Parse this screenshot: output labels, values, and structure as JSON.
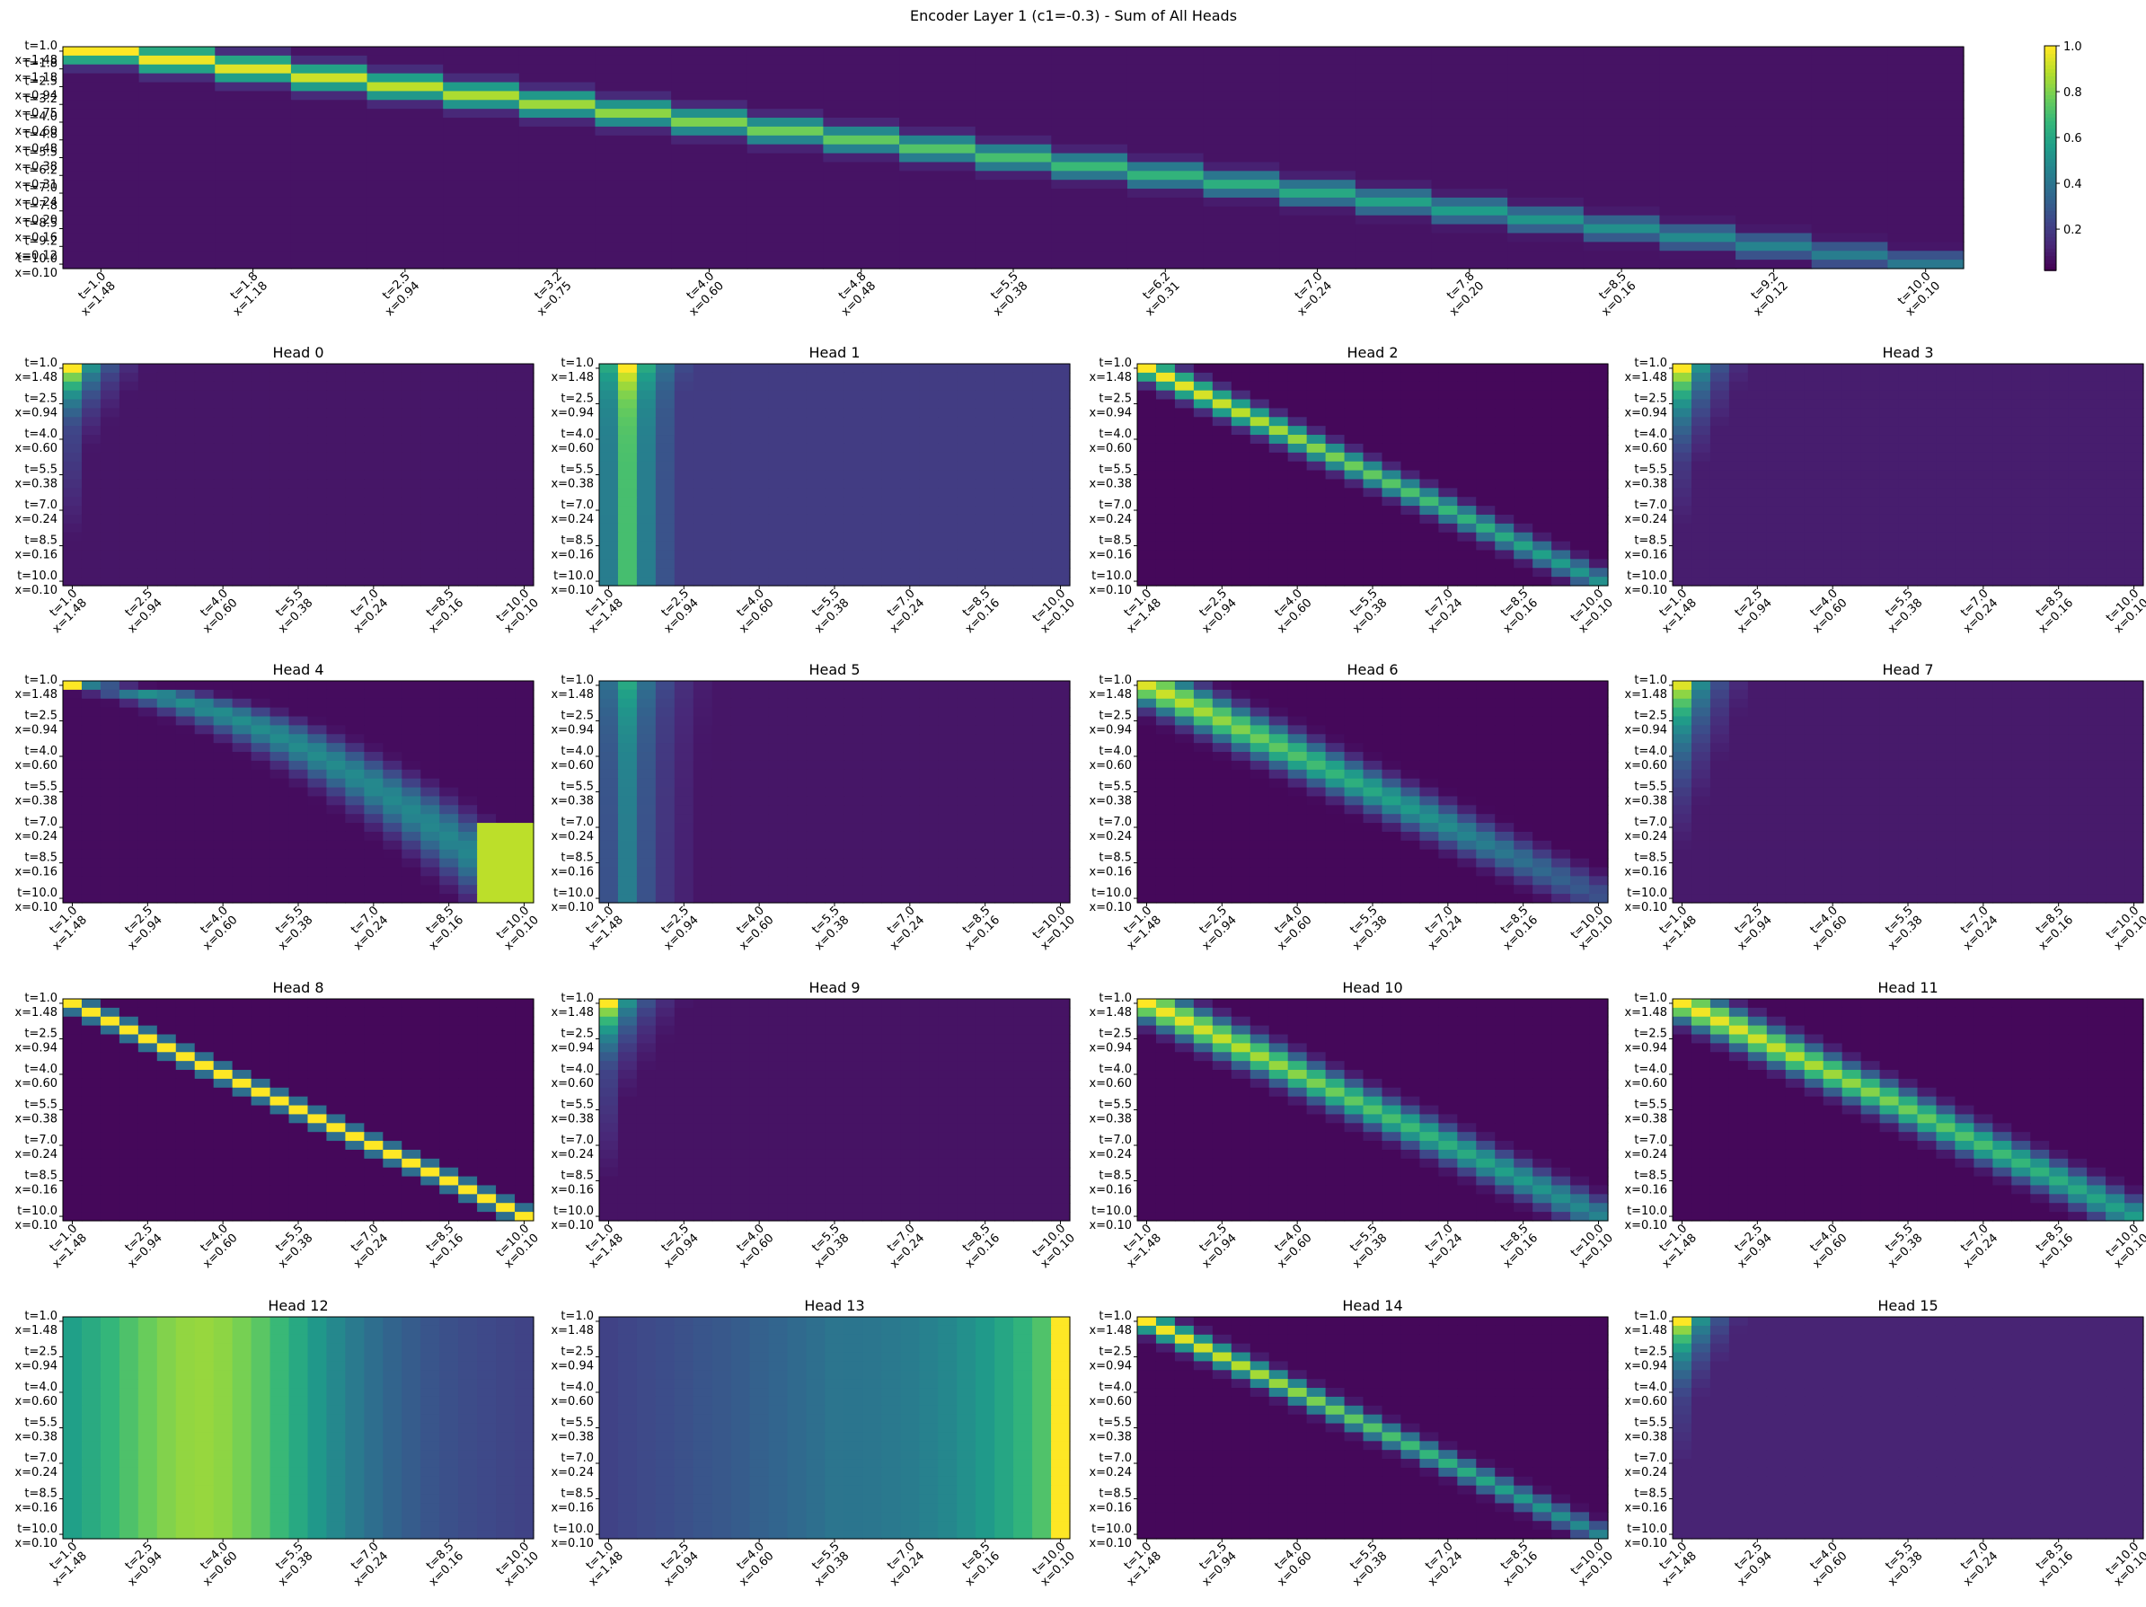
{
  "figure": {
    "title": "Encoder Layer 1 (c1=-0.3) - Sum of All Heads",
    "colormap": "viridis"
  },
  "colorbar": {
    "ticks": [
      0.2,
      0.4,
      0.6,
      0.8,
      1.0
    ],
    "tick_labels": [
      "0.2",
      "0.4",
      "0.6",
      "0.8",
      "1.0"
    ],
    "range": [
      0.02,
      1.0
    ]
  },
  "chart_data": {
    "type": "heatmap",
    "grid_size": 25,
    "tokens": {
      "t": [
        "1.0",
        "1.4",
        "1.8",
        "2.1",
        "2.5",
        "2.9",
        "3.2",
        "3.6",
        "4.0",
        "4.4",
        "4.8",
        "5.1",
        "5.5",
        "5.9",
        "6.2",
        "6.6",
        "7.0",
        "7.4",
        "7.8",
        "8.1",
        "8.5",
        "8.9",
        "9.2",
        "9.6",
        "10.0"
      ],
      "x": [
        "1.48",
        "1.32",
        "1.18",
        "1.05",
        "0.94",
        "0.84",
        "0.75",
        "0.67",
        "0.60",
        "0.54",
        "0.48",
        "0.43",
        "0.38",
        "0.34",
        "0.31",
        "0.27",
        "0.24",
        "0.22",
        "0.20",
        "0.18",
        "0.16",
        "0.14",
        "0.12",
        "0.11",
        "0.10"
      ]
    },
    "main_tick_indices": [
      0,
      2,
      4,
      6,
      8,
      10,
      12,
      14,
      16,
      18,
      20,
      22,
      24
    ],
    "head_tick_indices": [
      0,
      4,
      8,
      12,
      16,
      20,
      24
    ],
    "main": {
      "name": "Sum of All Heads",
      "pattern": "diagonal",
      "peak_first": 1.0,
      "peak_last": 0.4,
      "width": 1.0,
      "floor": 0.05
    },
    "heads": [
      {
        "name": "Head 0",
        "pattern": "first_column",
        "peak": 1.0,
        "decay": 0.18,
        "floor": 0.06
      },
      {
        "name": "Head 1",
        "pattern": "second_column",
        "peak": 1.0,
        "decay": 0.12,
        "floor": 0.18
      },
      {
        "name": "Head 2",
        "pattern": "diagonal",
        "peak_first": 1.0,
        "peak_last": 0.5,
        "width": 1.0,
        "floor": 0.02
      },
      {
        "name": "Head 3",
        "pattern": "first_column",
        "peak": 1.0,
        "decay": 0.25,
        "floor": 0.08
      },
      {
        "name": "Head 4",
        "pattern": "curve",
        "peak_first": 1.0,
        "peak_last": 0.9,
        "width": 1.8,
        "floor": 0.03
      },
      {
        "name": "Head 5",
        "pattern": "second_column",
        "peak": 0.6,
        "decay": 0.2,
        "floor": 0.06
      },
      {
        "name": "Head 6",
        "pattern": "diagonal",
        "peak_first": 0.95,
        "peak_last": 0.25,
        "width": 1.6,
        "floor": 0.02
      },
      {
        "name": "Head 7",
        "pattern": "first_column",
        "peak": 0.95,
        "decay": 0.3,
        "floor": 0.07
      },
      {
        "name": "Head 8",
        "pattern": "diagonal",
        "peak_first": 1.0,
        "peak_last": 1.0,
        "width": 0.7,
        "floor": 0.02
      },
      {
        "name": "Head 9",
        "pattern": "first_column",
        "peak": 1.0,
        "decay": 0.2,
        "floor": 0.05
      },
      {
        "name": "Head 10",
        "pattern": "diagonal",
        "peak_first": 1.0,
        "peak_last": 0.45,
        "width": 1.4,
        "floor": 0.02
      },
      {
        "name": "Head 11",
        "pattern": "diagonal",
        "peak_first": 1.0,
        "peak_last": 0.55,
        "width": 1.4,
        "floor": 0.02
      },
      {
        "name": "Head 12",
        "pattern": "diffuse_green",
        "peak": 0.95,
        "floor": 0.4
      },
      {
        "name": "Head 13",
        "pattern": "diffuse_right",
        "peak": 1.0,
        "floor": 0.2
      },
      {
        "name": "Head 14",
        "pattern": "diagonal",
        "peak_first": 1.0,
        "peak_last": 0.45,
        "width": 0.9,
        "floor": 0.02
      },
      {
        "name": "Head 15",
        "pattern": "first_column",
        "peak": 1.0,
        "decay": 0.22,
        "floor": 0.1
      }
    ]
  }
}
